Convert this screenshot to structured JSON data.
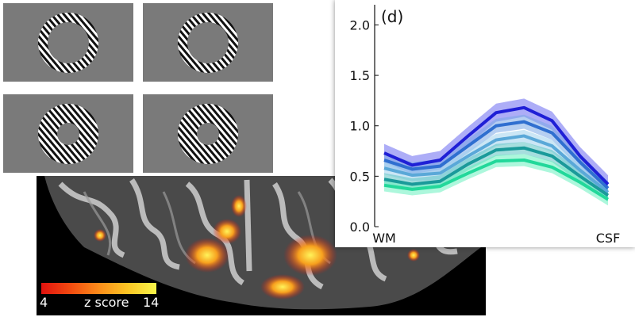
{
  "figure": {
    "panel_label": "(d)",
    "colorbar": {
      "min_label": "4",
      "title": "z score",
      "max_label": "14"
    }
  },
  "colors": {
    "stimulus_background": "#7a7a7a",
    "series": [
      "#1f1fd6",
      "#2f6fd0",
      "#5aa8d8",
      "#1a9a9a",
      "#22d89a"
    ],
    "series_bands": [
      "#6a6af0",
      "#7aa8e6",
      "#a0d2ec",
      "#5cc2c2",
      "#6af0c0"
    ]
  },
  "chart_data": {
    "type": "line",
    "x": [
      0,
      1,
      2,
      3,
      4,
      5,
      6,
      7,
      8
    ],
    "xticks": [
      {
        "x": 0,
        "label": "WM"
      },
      {
        "x": 8,
        "label": "CSF"
      }
    ],
    "ylim": [
      0.0,
      2.2
    ],
    "yticks": [
      "0.0",
      "0.5",
      "1.0",
      "1.5",
      "2.0"
    ],
    "ytick_values": [
      0.0,
      0.5,
      1.0,
      1.5,
      2.0
    ],
    "series": [
      {
        "values": [
          0.73,
          0.61,
          0.66,
          0.9,
          1.13,
          1.18,
          1.05,
          0.7,
          0.42
        ],
        "band": 0.09
      },
      {
        "values": [
          0.66,
          0.57,
          0.6,
          0.8,
          1.0,
          1.04,
          0.93,
          0.64,
          0.38
        ],
        "band": 0.07
      },
      {
        "values": [
          0.58,
          0.51,
          0.53,
          0.7,
          0.86,
          0.9,
          0.8,
          0.56,
          0.34
        ],
        "band": 0.06
      },
      {
        "values": [
          0.47,
          0.42,
          0.45,
          0.62,
          0.76,
          0.78,
          0.7,
          0.5,
          0.31
        ],
        "band": 0.06
      },
      {
        "values": [
          0.41,
          0.37,
          0.4,
          0.53,
          0.65,
          0.66,
          0.59,
          0.44,
          0.27
        ],
        "band": 0.06
      }
    ]
  }
}
